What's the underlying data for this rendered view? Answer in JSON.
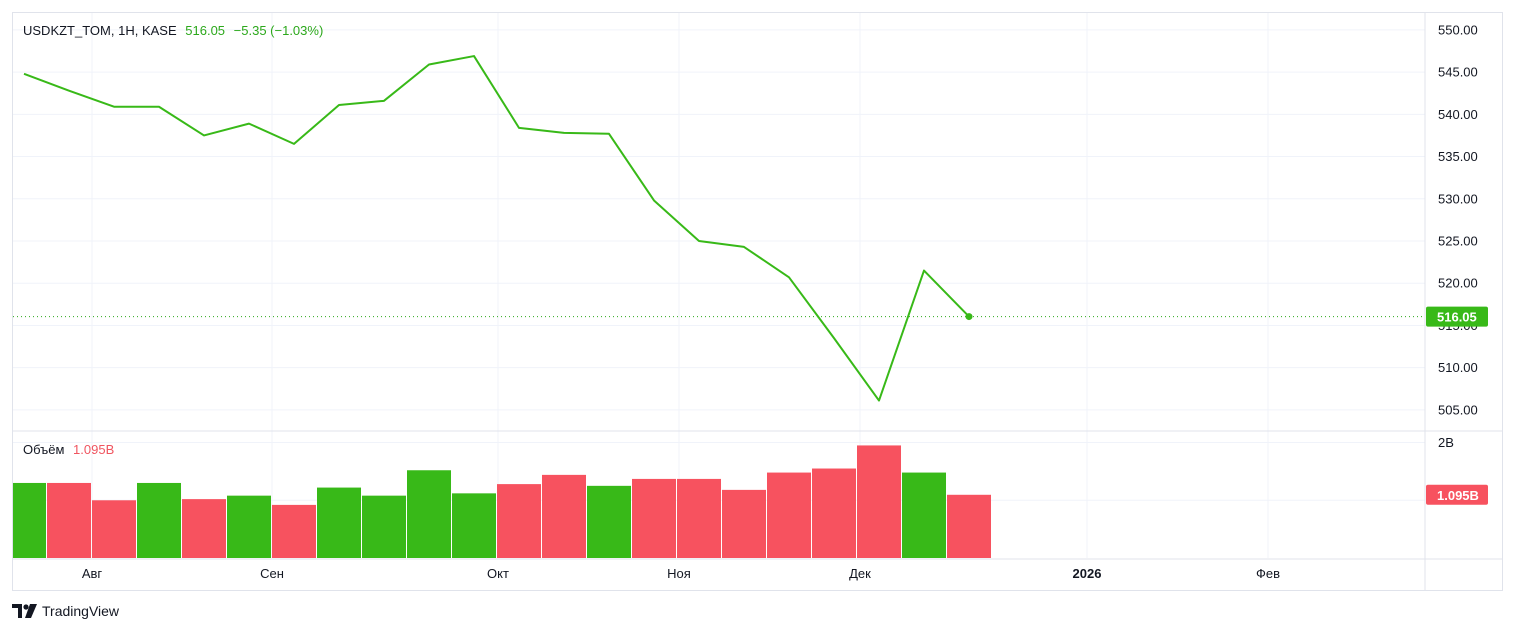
{
  "header": {
    "symbol": "USDKZT_TOM, 1H, KASE",
    "last_price": "516.05",
    "change": "−5.35 (−1.03%)"
  },
  "volume_legend": {
    "label": "Объём",
    "value": "1.095B"
  },
  "brand": {
    "name": "TradingView",
    "icon": "tradingview-logo-icon"
  },
  "colors": {
    "up": "#2ca81b",
    "down": "#f05560",
    "up_bar": "#38b918",
    "down_bar": "#f7525f",
    "grid": "#f0f3fa",
    "separator": "#e0e3eb"
  },
  "chart_data": [
    {
      "type": "line",
      "name": "price",
      "x_ticks": [
        "Авг",
        "Сен",
        "Окт",
        "Ноя",
        "Дек",
        "2026",
        "Фев"
      ],
      "y_ticks": [
        "550.00",
        "545.00",
        "540.00",
        "535.00",
        "530.00",
        "525.00",
        "520.00",
        "515.00",
        "510.00",
        "505.00"
      ],
      "ylim": [
        502.5,
        552
      ],
      "values": [
        544.8,
        542.8,
        540.9,
        540.9,
        537.5,
        538.9,
        536.5,
        541.1,
        541.6,
        545.9,
        546.9,
        538.4,
        537.8,
        537.7,
        529.8,
        525.0,
        524.3,
        520.7,
        513.5,
        506.1,
        521.5,
        516.05
      ],
      "last_value": "516.05",
      "last_value_line": "dotted"
    },
    {
      "type": "bar",
      "name": "volume",
      "y_ticks": [
        "2B"
      ],
      "ylim": [
        0,
        2.2
      ],
      "last_value": "1.095B",
      "values": [
        1.3,
        1.3,
        1.0,
        1.3,
        1.02,
        1.08,
        0.92,
        1.22,
        1.08,
        1.52,
        1.12,
        1.28,
        1.44,
        1.25,
        1.37,
        1.37,
        1.18,
        1.48,
        1.55,
        1.95,
        1.48,
        1.095
      ],
      "directions": [
        "up",
        "down",
        "down",
        "up",
        "down",
        "up",
        "down",
        "up",
        "up",
        "up",
        "up",
        "down",
        "down",
        "up",
        "down",
        "down",
        "down",
        "down",
        "down",
        "down",
        "up",
        "down"
      ]
    }
  ]
}
